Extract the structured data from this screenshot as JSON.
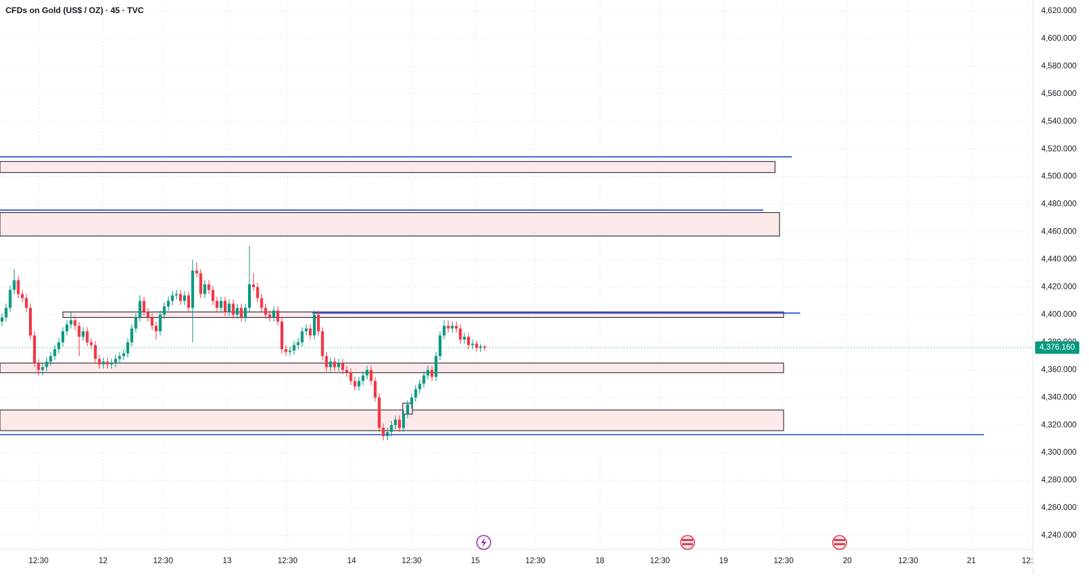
{
  "chart_data": {
    "type": "candlestick",
    "title": "CFDs on Gold (US$ / OZ) · 45 · TVC",
    "up_color": "#089981",
    "down_color": "#f23645",
    "zone_color": "#fde8ea",
    "level_color": "#1848cc",
    "grid": true,
    "xlim": [
      -0.5,
      254.2
    ],
    "ylim": [
      4230,
      4628
    ],
    "xticks": [
      {
        "value": 9.0,
        "label": "12:30"
      },
      {
        "value": 24.9,
        "label": "12"
      },
      {
        "value": 39.7,
        "label": "12:30"
      },
      {
        "value": 55.5,
        "label": "13"
      },
      {
        "value": 70.4,
        "label": "12:30"
      },
      {
        "value": 86.2,
        "label": "14"
      },
      {
        "value": 101.0,
        "label": "12:30"
      },
      {
        "value": 116.7,
        "label": "15"
      },
      {
        "value": 131.5,
        "label": "12:30"
      },
      {
        "value": 147.4,
        "label": "18"
      },
      {
        "value": 162.2,
        "label": "12:30"
      },
      {
        "value": 177.9,
        "label": "19"
      },
      {
        "value": 192.7,
        "label": "12:30"
      },
      {
        "value": 208.4,
        "label": "20"
      },
      {
        "value": 223.4,
        "label": "12:30"
      },
      {
        "value": 239.0,
        "label": "21"
      },
      {
        "value": 252.8,
        "label": "12:"
      }
    ],
    "yticks": [
      {
        "value": 4240,
        "label": "4,240.000"
      },
      {
        "value": 4260,
        "label": "4,260.000"
      },
      {
        "value": 4280,
        "label": "4,280.000"
      },
      {
        "value": 4300,
        "label": "4,300.000"
      },
      {
        "value": 4320,
        "label": "4,320.000"
      },
      {
        "value": 4340,
        "label": "4,340.000"
      },
      {
        "value": 4360,
        "label": "4,360.000"
      },
      {
        "value": 4380,
        "label": "4,380.000"
      },
      {
        "value": 4400,
        "label": "4,400.000"
      },
      {
        "value": 4420,
        "label": "4,420.000"
      },
      {
        "value": 4440,
        "label": "4,440.000"
      },
      {
        "value": 4460,
        "label": "4,460.000"
      },
      {
        "value": 4480,
        "label": "4,480.000"
      },
      {
        "value": 4500,
        "label": "4,500.000"
      },
      {
        "value": 4520,
        "label": "4,520.000"
      },
      {
        "value": 4540,
        "label": "4,540.000"
      },
      {
        "value": 4560,
        "label": "4,560.000"
      },
      {
        "value": 4580,
        "label": "4,580.000"
      },
      {
        "value": 4600,
        "label": "4,600.000"
      },
      {
        "value": 4620,
        "label": "4,620.000"
      }
    ],
    "last_price": 4376.16,
    "last_price_label": "4,376.160",
    "open": [
      4395,
      4398,
      4405,
      4418,
      4425,
      4415,
      4412,
      4405,
      4385,
      4365,
      4360,
      4362,
      4366,
      4370,
      4375,
      4380,
      4388,
      4393,
      4396,
      4392,
      4384,
      4388,
      4380,
      4378,
      4368,
      4364,
      4366,
      4364,
      4365,
      4368,
      4370,
      4372,
      4380,
      4390,
      4398,
      4410,
      4402,
      4398,
      4392,
      4388,
      4400,
      4406,
      4410,
      4414,
      4415,
      4410,
      4414,
      4405,
      4432,
      4430,
      4415,
      4422,
      4418,
      4410,
      4405,
      4410,
      4402,
      4408,
      4400,
      4405,
      4398,
      4405,
      4422,
      4420,
      4412,
      4405,
      4400,
      4398,
      4403,
      4395,
      4375,
      4373,
      4374,
      4378,
      4380,
      4388,
      4390,
      4385,
      4400,
      4388,
      4370,
      4362,
      4366,
      4362,
      4365,
      4360,
      4358,
      4352,
      4348,
      4352,
      4356,
      4360,
      4352,
      4340,
      4318,
      4312,
      4315,
      4320,
      4324,
      4318,
      4328,
      4335,
      4340,
      4346,
      4350,
      4356,
      4360,
      4355,
      4370,
      4385,
      4392,
      4390,
      4392,
      4390,
      4382,
      4384,
      4378,
      4379,
      4376,
      4377
    ],
    "high": [
      4401,
      4408,
      4421,
      4433,
      4428,
      4418,
      4415,
      4408,
      4388,
      4368,
      4365,
      4369,
      4373,
      4378,
      4383,
      4391,
      4396,
      4402,
      4399,
      4395,
      4391,
      4391,
      4383,
      4381,
      4371,
      4369,
      4369,
      4368,
      4371,
      4373,
      4375,
      4383,
      4393,
      4401,
      4414,
      4413,
      4405,
      4401,
      4395,
      4403,
      4409,
      4413,
      4417,
      4418,
      4418,
      4417,
      4417,
      4440,
      4438,
      4433,
      4425,
      4425,
      4421,
      4413,
      4413,
      4413,
      4411,
      4411,
      4408,
      4408,
      4408,
      4450,
      4430,
      4423,
      4415,
      4408,
      4403,
      4406,
      4406,
      4398,
      4378,
      4377,
      4381,
      4383,
      4391,
      4393,
      4393,
      4403,
      4403,
      4391,
      4373,
      4369,
      4369,
      4368,
      4368,
      4363,
      4361,
      4355,
      4355,
      4359,
      4363,
      4363,
      4355,
      4343,
      4321,
      4318,
      4323,
      4327,
      4327,
      4331,
      4338,
      4343,
      4349,
      4353,
      4359,
      4363,
      4363,
      4373,
      4388,
      4396,
      4396,
      4395,
      4395,
      4393,
      4387,
      4387,
      4382,
      4381,
      4379,
      4378
    ],
    "low": [
      4392,
      4395,
      4402,
      4415,
      4412,
      4409,
      4402,
      4382,
      4362,
      4356,
      4356,
      4359,
      4363,
      4367,
      4372,
      4377,
      4385,
      4390,
      4389,
      4370,
      4381,
      4377,
      4375,
      4365,
      4361,
      4361,
      4361,
      4361,
      4362,
      4365,
      4367,
      4369,
      4377,
      4387,
      4395,
      4399,
      4395,
      4389,
      4382,
      4385,
      4397,
      4403,
      4407,
      4411,
      4407,
      4407,
      4402,
      4380,
      4427,
      4412,
      4412,
      4415,
      4407,
      4402,
      4402,
      4399,
      4399,
      4397,
      4397,
      4395,
      4395,
      4402,
      4417,
      4409,
      4402,
      4397,
      4395,
      4395,
      4392,
      4372,
      4370,
      4370,
      4371,
      4375,
      4377,
      4385,
      4382,
      4382,
      4385,
      4367,
      4359,
      4359,
      4359,
      4359,
      4357,
      4355,
      4349,
      4345,
      4345,
      4349,
      4353,
      4349,
      4337,
      4315,
      4309,
      4309,
      4312,
      4317,
      4315,
      4315,
      4325,
      4332,
      4337,
      4343,
      4347,
      4353,
      4352,
      4352,
      4367,
      4382,
      4387,
      4387,
      4387,
      4379,
      4379,
      4375,
      4375,
      4373,
      4373,
      4374
    ],
    "close": [
      4398,
      4405,
      4418,
      4425,
      4415,
      4412,
      4405,
      4385,
      4365,
      4360,
      4362,
      4366,
      4370,
      4375,
      4380,
      4388,
      4393,
      4396,
      4392,
      4384,
      4388,
      4380,
      4378,
      4368,
      4364,
      4366,
      4364,
      4365,
      4368,
      4370,
      4372,
      4380,
      4390,
      4398,
      4410,
      4402,
      4398,
      4392,
      4388,
      4400,
      4406,
      4410,
      4414,
      4415,
      4410,
      4414,
      4405,
      4432,
      4430,
      4415,
      4422,
      4418,
      4410,
      4405,
      4410,
      4402,
      4408,
      4400,
      4405,
      4398,
      4405,
      4422,
      4420,
      4412,
      4405,
      4400,
      4398,
      4403,
      4395,
      4375,
      4373,
      4374,
      4378,
      4380,
      4388,
      4390,
      4385,
      4400,
      4388,
      4370,
      4362,
      4366,
      4362,
      4365,
      4360,
      4358,
      4352,
      4348,
      4352,
      4356,
      4360,
      4352,
      4340,
      4318,
      4312,
      4315,
      4320,
      4324,
      4318,
      4328,
      4335,
      4340,
      4346,
      4350,
      4356,
      4360,
      4355,
      4370,
      4385,
      4392,
      4390,
      4392,
      4390,
      4382,
      4384,
      4378,
      4379,
      4376,
      4377,
      4376.16
    ],
    "zones": [
      {
        "x": [
          -0.5,
          190.6
        ],
        "y": [
          4503,
          4511
        ]
      },
      {
        "x": [
          -0.5,
          191.7
        ],
        "y": [
          4457,
          4474
        ]
      },
      {
        "x": [
          15.0,
          192.7
        ],
        "y": [
          4398,
          4402
        ]
      },
      {
        "x": [
          -0.5,
          192.7
        ],
        "y": [
          4358,
          4365
        ]
      },
      {
        "x": [
          -0.5,
          192.7
        ],
        "y": [
          4316,
          4331
        ]
      },
      {
        "x": [
          98.8,
          101.2
        ],
        "y": [
          4328,
          4336
        ]
      }
    ],
    "levels": [
      {
        "x": [
          -0.5,
          194.7
        ],
        "y": 4514.4
      },
      {
        "x": [
          -0.5,
          187.7
        ],
        "y": 4475.8
      },
      {
        "x": [
          76.5,
          196.8
        ],
        "y": 4401.2
      },
      {
        "x": [
          -0.5,
          242.1
        ],
        "y": 4313.1
      }
    ]
  }
}
